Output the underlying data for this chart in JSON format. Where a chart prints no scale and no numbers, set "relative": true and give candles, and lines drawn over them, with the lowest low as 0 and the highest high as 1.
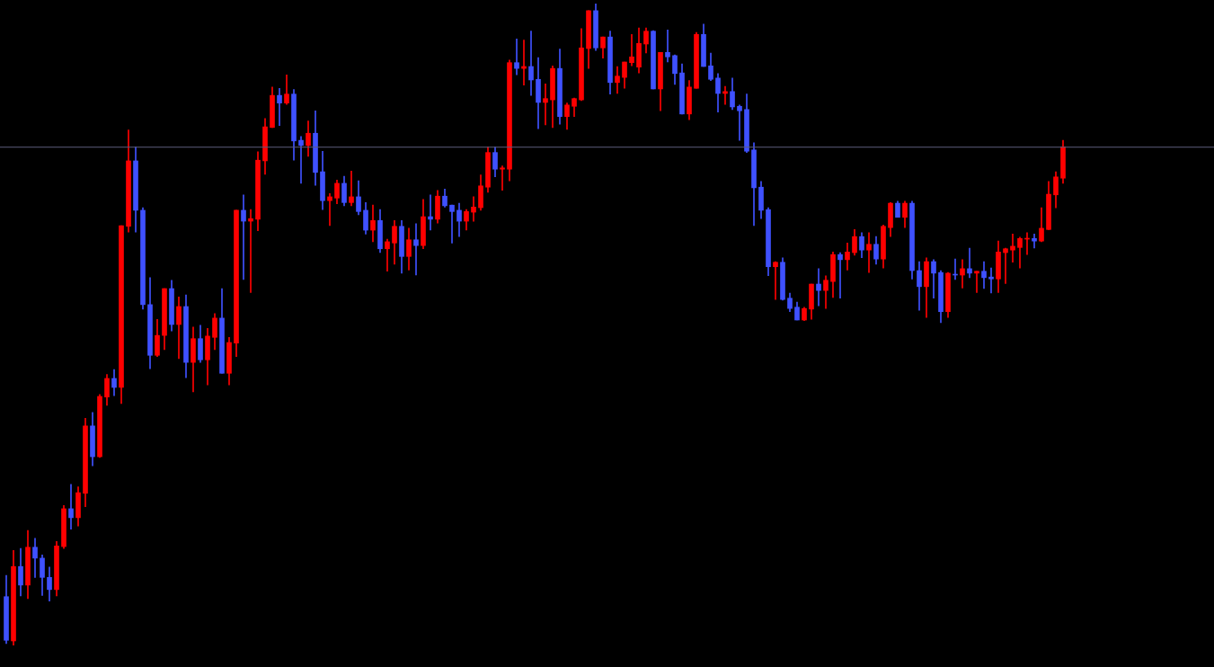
{
  "chart_data": {
    "type": "candlestick",
    "relative": true,
    "categories": [
      null,
      null,
      null,
      null,
      null,
      null,
      null,
      null,
      null,
      null,
      null,
      null,
      null,
      null,
      null,
      null,
      null,
      null,
      null,
      null,
      null,
      null,
      null,
      null,
      null,
      null,
      null,
      null,
      null,
      null,
      null,
      null,
      null,
      null,
      null,
      null,
      null,
      null,
      null,
      null,
      null,
      null,
      null,
      null,
      null,
      null,
      null,
      null,
      null,
      null,
      null,
      null,
      null,
      null,
      null,
      null,
      null,
      null,
      null,
      null,
      null,
      null,
      null,
      null,
      null,
      null,
      null,
      null,
      null,
      null,
      null,
      null,
      null,
      null,
      null,
      null,
      null,
      null,
      null,
      null,
      null,
      null,
      null,
      null,
      null,
      null,
      null,
      null,
      null,
      null,
      null,
      null,
      null,
      null,
      null,
      null,
      null,
      null,
      null,
      null,
      null,
      null,
      null,
      null,
      null,
      null,
      null,
      null,
      null,
      null,
      null,
      null,
      null,
      null,
      null,
      null,
      null,
      null,
      null,
      null,
      null,
      null,
      null,
      null,
      null,
      null,
      null,
      null,
      null,
      null,
      null,
      null,
      null,
      null,
      null,
      null,
      null,
      null,
      null,
      null,
      null,
      null,
      null,
      null,
      null,
      null,
      null,
      null
    ],
    "ohlc": [
      [
        0.076,
        0.109,
        0.003,
        0.008
      ],
      [
        0.007,
        0.148,
        0,
        0.123
      ],
      [
        0.123,
        0.151,
        0.077,
        0.094
      ],
      [
        0.094,
        0.179,
        0.073,
        0.153
      ],
      [
        0.153,
        0.167,
        0.106,
        0.136
      ],
      [
        0.136,
        0.141,
        0.078,
        0.106
      ],
      [
        0.106,
        0.122,
        0.069,
        0.087
      ],
      [
        0.087,
        0.162,
        0.077,
        0.155
      ],
      [
        0.154,
        0.218,
        0.151,
        0.213
      ],
      [
        0.213,
        0.251,
        0.181,
        0.199
      ],
      [
        0.199,
        0.247,
        0.186,
        0.238
      ],
      [
        0.237,
        0.354,
        0.216,
        0.342
      ],
      [
        0.342,
        0.363,
        0.28,
        0.294
      ],
      [
        0.294,
        0.391,
        0.293,
        0.388
      ],
      [
        0.387,
        0.422,
        0.374,
        0.416
      ],
      [
        0.416,
        0.43,
        0.389,
        0.402
      ],
      [
        0.402,
        0.654,
        0.377,
        0.654
      ],
      [
        0.653,
        0.803,
        0.644,
        0.755
      ],
      [
        0.755,
        0.777,
        0.644,
        0.678
      ],
      [
        0.678,
        0.682,
        0.524,
        0.531
      ],
      [
        0.531,
        0.573,
        0.431,
        0.452
      ],
      [
        0.452,
        0.508,
        0.45,
        0.483
      ],
      [
        0.483,
        0.556,
        0.461,
        0.556
      ],
      [
        0.556,
        0.569,
        0.49,
        0.5
      ],
      [
        0.5,
        0.543,
        0.447,
        0.528
      ],
      [
        0.528,
        0.546,
        0.417,
        0.441
      ],
      [
        0.441,
        0.496,
        0.395,
        0.478
      ],
      [
        0.478,
        0.499,
        0.441,
        0.445
      ],
      [
        0.445,
        0.494,
        0.406,
        0.482
      ],
      [
        0.48,
        0.517,
        0.461,
        0.51
      ],
      [
        0.51,
        0.556,
        0.424,
        0.424
      ],
      [
        0.424,
        0.48,
        0.406,
        0.472
      ],
      [
        0.471,
        0.678,
        0.45,
        0.678
      ],
      [
        0.678,
        0.702,
        0.57,
        0.661
      ],
      [
        0.661,
        0.679,
        0.55,
        0.665
      ],
      [
        0.664,
        0.769,
        0.646,
        0.756
      ],
      [
        0.755,
        0.821,
        0.734,
        0.808
      ],
      [
        0.807,
        0.87,
        0.807,
        0.857
      ],
      [
        0.857,
        0.868,
        0.81,
        0.845
      ],
      [
        0.845,
        0.889,
        0.843,
        0.859
      ],
      [
        0.859,
        0.866,
        0.756,
        0.786
      ],
      [
        0.787,
        0.793,
        0.72,
        0.779
      ],
      [
        0.779,
        0.817,
        0.762,
        0.798
      ],
      [
        0.798,
        0.833,
        0.717,
        0.737
      ],
      [
        0.738,
        0.77,
        0.679,
        0.693
      ],
      [
        0.693,
        0.704,
        0.654,
        0.699
      ],
      [
        0.697,
        0.725,
        0.688,
        0.72
      ],
      [
        0.72,
        0.731,
        0.685,
        0.69
      ],
      [
        0.69,
        0.739,
        0.685,
        0.699
      ],
      [
        0.699,
        0.724,
        0.671,
        0.676
      ],
      [
        0.678,
        0.69,
        0.641,
        0.647
      ],
      [
        0.647,
        0.686,
        0.629,
        0.662
      ],
      [
        0.662,
        0.679,
        0.612,
        0.618
      ],
      [
        0.618,
        0.633,
        0.583,
        0.629
      ],
      [
        0.627,
        0.662,
        0.594,
        0.653
      ],
      [
        0.653,
        0.662,
        0.58,
        0.606
      ],
      [
        0.606,
        0.65,
        0.585,
        0.632
      ],
      [
        0.632,
        0.657,
        0.577,
        0.623
      ],
      [
        0.623,
        0.695,
        0.618,
        0.668
      ],
      [
        0.668,
        0.702,
        0.647,
        0.664
      ],
      [
        0.664,
        0.709,
        0.658,
        0.7
      ],
      [
        0.7,
        0.711,
        0.683,
        0.685
      ],
      [
        0.686,
        0.686,
        0.627,
        0.676
      ],
      [
        0.678,
        0.689,
        0.637,
        0.661
      ],
      [
        0.661,
        0.679,
        0.647,
        0.676
      ],
      [
        0.675,
        0.699,
        0.661,
        0.683
      ],
      [
        0.682,
        0.733,
        0.678,
        0.716
      ],
      [
        0.714,
        0.777,
        0.706,
        0.768
      ],
      [
        0.768,
        0.777,
        0.73,
        0.742
      ],
      [
        0.742,
        0.747,
        0.709,
        0.744
      ],
      [
        0.742,
        0.912,
        0.724,
        0.908
      ],
      [
        0.908,
        0.945,
        0.889,
        0.899
      ],
      [
        0.899,
        0.943,
        0.873,
        0.902
      ],
      [
        0.902,
        0.957,
        0.857,
        0.881
      ],
      [
        0.882,
        0.916,
        0.805,
        0.846
      ],
      [
        0.846,
        0.875,
        0.811,
        0.852
      ],
      [
        0.85,
        0.903,
        0.807,
        0.899
      ],
      [
        0.899,
        0.929,
        0.812,
        0.824
      ],
      [
        0.824,
        0.845,
        0.804,
        0.842
      ],
      [
        0.84,
        0.853,
        0.824,
        0.852
      ],
      [
        0.85,
        0.961,
        0.849,
        0.931
      ],
      [
        0.93,
        0.989,
        0.899,
        0.989
      ],
      [
        0.989,
        1,
        0.927,
        0.931
      ],
      [
        0.931,
        0.948,
        0.915,
        0.948
      ],
      [
        0.948,
        0.957,
        0.859,
        0.877
      ],
      [
        0.877,
        0.902,
        0.86,
        0.887
      ],
      [
        0.885,
        0.909,
        0.868,
        0.909
      ],
      [
        0.908,
        0.952,
        0.903,
        0.917
      ],
      [
        0.901,
        0.962,
        0.892,
        0.938
      ],
      [
        0.937,
        0.962,
        0.923,
        0.957
      ],
      [
        0.957,
        0.958,
        0.867,
        0.867
      ],
      [
        0.867,
        0.924,
        0.833,
        0.924
      ],
      [
        0.924,
        0.959,
        0.909,
        0.917
      ],
      [
        0.919,
        0.92,
        0.874,
        0.891
      ],
      [
        0.892,
        0.906,
        0.828,
        0.828
      ],
      [
        0.828,
        0.88,
        0.819,
        0.87
      ],
      [
        0.868,
        0.955,
        0.868,
        0.952
      ],
      [
        0.952,
        0.968,
        0.902,
        0.902
      ],
      [
        0.903,
        0.923,
        0.88,
        0.882
      ],
      [
        0.884,
        0.891,
        0.831,
        0.86
      ],
      [
        0.86,
        0.871,
        0.843,
        0.863
      ],
      [
        0.863,
        0.884,
        0.835,
        0.839
      ],
      [
        0.84,
        0.842,
        0.787,
        0.833
      ],
      [
        0.835,
        0.859,
        0.768,
        0.77
      ],
      [
        0.772,
        0.783,
        0.654,
        0.713
      ],
      [
        0.714,
        0.723,
        0.665,
        0.678
      ],
      [
        0.679,
        0.682,
        0.576,
        0.59
      ],
      [
        0.59,
        0.598,
        0.539,
        0.597
      ],
      [
        0.597,
        0.604,
        0.538,
        0.539
      ],
      [
        0.541,
        0.549,
        0.52,
        0.525
      ],
      [
        0.527,
        0.535,
        0.507,
        0.507
      ],
      [
        0.507,
        0.527,
        0.506,
        0.525
      ],
      [
        0.524,
        0.563,
        0.508,
        0.563
      ],
      [
        0.563,
        0.587,
        0.529,
        0.553
      ],
      [
        0.553,
        0.576,
        0.525,
        0.569
      ],
      [
        0.567,
        0.613,
        0.542,
        0.609
      ],
      [
        0.609,
        0.612,
        0.541,
        0.601
      ],
      [
        0.601,
        0.627,
        0.585,
        0.613
      ],
      [
        0.612,
        0.648,
        0.608,
        0.637
      ],
      [
        0.637,
        0.643,
        0.604,
        0.616
      ],
      [
        0.616,
        0.643,
        0.581,
        0.625
      ],
      [
        0.625,
        0.637,
        0.594,
        0.602
      ],
      [
        0.602,
        0.655,
        0.588,
        0.653
      ],
      [
        0.651,
        0.69,
        0.637,
        0.689
      ],
      [
        0.689,
        0.692,
        0.667,
        0.667
      ],
      [
        0.667,
        0.692,
        0.651,
        0.689
      ],
      [
        0.689,
        0.692,
        0.571,
        0.584
      ],
      [
        0.584,
        0.598,
        0.522,
        0.559
      ],
      [
        0.559,
        0.604,
        0.511,
        0.598
      ],
      [
        0.598,
        0.601,
        0.541,
        0.58
      ],
      [
        0.581,
        0.584,
        0.503,
        0.52
      ],
      [
        0.52,
        0.581,
        0.511,
        0.58
      ],
      [
        0.578,
        0.602,
        0.57,
        0.577
      ],
      [
        0.577,
        0.601,
        0.557,
        0.587
      ],
      [
        0.587,
        0.619,
        0.573,
        0.58
      ],
      [
        0.58,
        0.583,
        0.55,
        0.583
      ],
      [
        0.583,
        0.598,
        0.556,
        0.573
      ],
      [
        0.574,
        0.588,
        0.549,
        0.571
      ],
      [
        0.571,
        0.63,
        0.55,
        0.613
      ],
      [
        0.612,
        0.619,
        0.564,
        0.618
      ],
      [
        0.616,
        0.641,
        0.597,
        0.622
      ],
      [
        0.62,
        0.636,
        0.588,
        0.634
      ],
      [
        0.633,
        0.643,
        0.609,
        0.634
      ],
      [
        0.634,
        0.641,
        0.619,
        0.63
      ],
      [
        0.63,
        0.682,
        0.629,
        0.65
      ],
      [
        0.648,
        0.723,
        0.648,
        0.703
      ],
      [
        0.702,
        0.738,
        0.682,
        0.73
      ],
      [
        0.728,
        0.787,
        0.72,
        0.777
      ]
    ],
    "colors": [
      "#3f51ff",
      "#ff0000",
      "#3f51ff",
      "#ff0000",
      "#3f51ff",
      "#3f51ff",
      "#3f51ff",
      "#ff0000",
      "#ff0000",
      "#3f51ff",
      "#ff0000",
      "#ff0000",
      "#3f51ff",
      "#ff0000",
      "#ff0000",
      "#3f51ff",
      "#ff0000",
      "#ff0000",
      "#3f51ff",
      "#3f51ff",
      "#3f51ff",
      "#ff0000",
      "#ff0000",
      "#3f51ff",
      "#ff0000",
      "#3f51ff",
      "#ff0000",
      "#3f51ff",
      "#ff0000",
      "#ff0000",
      "#3f51ff",
      "#ff0000",
      "#ff0000",
      "#3f51ff",
      "#ff0000",
      "#ff0000",
      "#ff0000",
      "#ff0000",
      "#3f51ff",
      "#ff0000",
      "#3f51ff",
      "#3f51ff",
      "#ff0000",
      "#3f51ff",
      "#3f51ff",
      "#ff0000",
      "#ff0000",
      "#3f51ff",
      "#ff0000",
      "#3f51ff",
      "#3f51ff",
      "#ff0000",
      "#3f51ff",
      "#ff0000",
      "#ff0000",
      "#3f51ff",
      "#ff0000",
      "#3f51ff",
      "#ff0000",
      "#3f51ff",
      "#ff0000",
      "#3f51ff",
      "#3f51ff",
      "#3f51ff",
      "#ff0000",
      "#ff0000",
      "#ff0000",
      "#ff0000",
      "#3f51ff",
      "#ff0000",
      "#ff0000",
      "#3f51ff",
      "#ff0000",
      "#3f51ff",
      "#3f51ff",
      "#ff0000",
      "#ff0000",
      "#3f51ff",
      "#ff0000",
      "#ff0000",
      "#ff0000",
      "#ff0000",
      "#3f51ff",
      "#ff0000",
      "#3f51ff",
      "#ff0000",
      "#ff0000",
      "#ff0000",
      "#ff0000",
      "#ff0000",
      "#3f51ff",
      "#ff0000",
      "#3f51ff",
      "#3f51ff",
      "#3f51ff",
      "#ff0000",
      "#ff0000",
      "#3f51ff",
      "#3f51ff",
      "#3f51ff",
      "#ff0000",
      "#3f51ff",
      "#3f51ff",
      "#3f51ff",
      "#3f51ff",
      "#3f51ff",
      "#3f51ff",
      "#ff0000",
      "#3f51ff",
      "#3f51ff",
      "#3f51ff",
      "#ff0000",
      "#ff0000",
      "#3f51ff",
      "#ff0000",
      "#ff0000",
      "#3f51ff",
      "#ff0000",
      "#ff0000",
      "#3f51ff",
      "#ff0000",
      "#3f51ff",
      "#ff0000",
      "#ff0000",
      "#3f51ff",
      "#ff0000",
      "#3f51ff",
      "#3f51ff",
      "#ff0000",
      "#3f51ff",
      "#3f51ff",
      "#ff0000",
      "#3f51ff",
      "#ff0000",
      "#3f51ff",
      "#ff0000",
      "#3f51ff",
      "#3f51ff",
      "#ff0000",
      "#ff0000",
      "#ff0000",
      "#ff0000",
      "#ff0000",
      "#3f51ff",
      "#ff0000",
      "#ff0000",
      "#ff0000",
      "#ff0000"
    ],
    "ref_lines": [
      {
        "axis": "y",
        "value": 0.777,
        "color": "#5c5c7a"
      }
    ]
  }
}
